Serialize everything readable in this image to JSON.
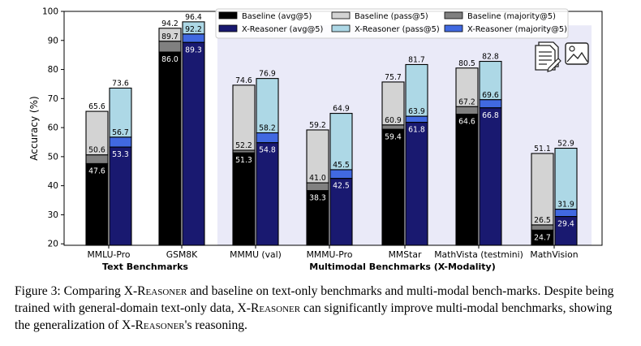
{
  "chart_data": {
    "type": "bar",
    "ylabel": "Accuracy (%)",
    "ylim": [
      19.5,
      100
    ],
    "yticks": [
      20,
      30,
      40,
      50,
      60,
      70,
      80,
      90,
      100
    ],
    "categories": [
      "MMLU-Pro",
      "GSM8K",
      "MMMU (val)",
      "MMMU-Pro",
      "MMStar",
      "MathVista (testmini)",
      "MathVision"
    ],
    "groups": [
      {
        "label": "Text Benchmarks",
        "categories": [
          "MMLU-Pro",
          "GSM8K"
        ]
      },
      {
        "label": "Multimodal Benchmarks (X-Modality)",
        "categories": [
          "MMMU (val)",
          "MMMU-Pro",
          "MMStar",
          "MathVista (testmini)",
          "MathVision"
        ]
      }
    ],
    "series": [
      {
        "name": "Baseline (avg@5)",
        "color": "#000000",
        "values": [
          47.6,
          86.0,
          51.3,
          38.3,
          59.4,
          64.6,
          24.7
        ]
      },
      {
        "name": "Baseline (majority@5)",
        "color": "#808080",
        "values": [
          50.6,
          89.7,
          52.2,
          41.0,
          60.9,
          67.2,
          26.5
        ]
      },
      {
        "name": "Baseline (pass@5)",
        "color": "#d3d3d3",
        "values": [
          65.6,
          94.2,
          74.6,
          59.2,
          75.7,
          80.5,
          51.1
        ]
      },
      {
        "name": "X-Reasoner (avg@5)",
        "color": "#191970",
        "values": [
          53.3,
          89.3,
          54.8,
          42.5,
          61.8,
          66.8,
          29.4
        ]
      },
      {
        "name": "X-Reasoner (majority@5)",
        "color": "#4169e1",
        "values": [
          56.7,
          92.2,
          58.2,
          45.5,
          63.9,
          69.6,
          31.9
        ]
      },
      {
        "name": "X-Reasoner (pass@5)",
        "color": "#add8e6",
        "values": [
          73.6,
          96.4,
          76.9,
          64.9,
          81.7,
          82.8,
          52.9
        ]
      }
    ],
    "legend": {
      "position": "top-right",
      "entries": [
        "Baseline (avg@5)",
        "Baseline (pass@5)",
        "Baseline (majority@5)",
        "X-Reasoner (avg@5)",
        "X-Reasoner (pass@5)",
        "X-Reasoner (majority@5)"
      ]
    },
    "shaded_region_color": "#eaeaf8"
  },
  "caption": {
    "prefix": "Figure 3: Comparing X-",
    "sc1": "Reasoner",
    "mid1": " and baseline on text-only benchmarks and multi-modal bench-marks. Despite being trained with general-domain text-only data, X-",
    "sc2": "Reasoner",
    "mid2": " can significantly improve multi-modal benchmarks, showing the generalization of X-",
    "sc3": "Reasoner",
    "suffix": "'s reasoning."
  },
  "icons": [
    "document-icon",
    "image-icon"
  ]
}
